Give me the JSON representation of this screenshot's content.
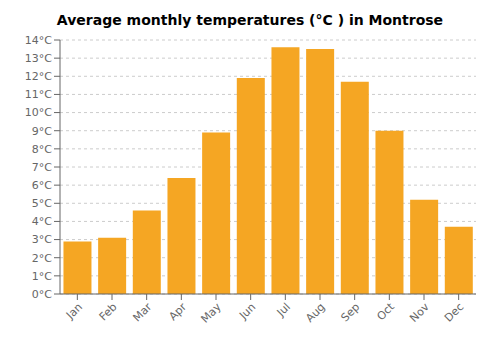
{
  "chart_data": {
    "type": "bar",
    "title": "Average monthly temperatures (°C ) in Montrose",
    "categories": [
      "Jan",
      "Feb",
      "Mar",
      "Apr",
      "May",
      "Jun",
      "Jul",
      "Aug",
      "Sep",
      "Oct",
      "Nov",
      "Dec"
    ],
    "values": [
      2.9,
      3.1,
      4.6,
      6.4,
      8.9,
      11.9,
      13.6,
      13.5,
      11.7,
      9.0,
      5.2,
      3.7
    ],
    "color": "#F5A623",
    "ylim": [
      0,
      14
    ],
    "yticks": [
      {
        "value": 0,
        "label": "0°C"
      },
      {
        "value": 1,
        "label": "1°C"
      },
      {
        "value": 2,
        "label": "2°C"
      },
      {
        "value": 3,
        "label": "3°C"
      },
      {
        "value": 4,
        "label": "4°C"
      },
      {
        "value": 5,
        "label": "5°C"
      },
      {
        "value": 6,
        "label": "6°C"
      },
      {
        "value": 7,
        "label": "7°C"
      },
      {
        "value": 8,
        "label": "8°C"
      },
      {
        "value": 9,
        "label": "9°C"
      },
      {
        "value": 10,
        "label": "10°C"
      },
      {
        "value": 11,
        "label": "11°C"
      },
      {
        "value": 12,
        "label": "12°C"
      },
      {
        "value": 13,
        "label": "13°C"
      },
      {
        "value": 14,
        "label": "14°C"
      }
    ],
    "grid": true
  }
}
